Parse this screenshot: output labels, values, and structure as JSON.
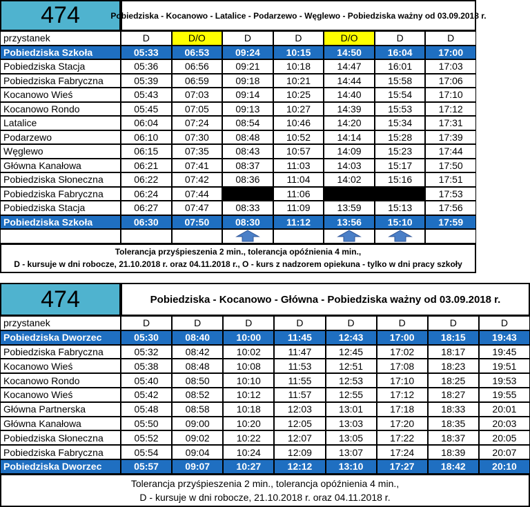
{
  "timetables": [
    {
      "route": "474",
      "title": "Pobiedziska - Kocanowo - Latalice - Podarzewo - Węglewo - Pobiedziska ważny od 03.09.2018 r.",
      "header": [
        "przystanek",
        "D",
        "D/O",
        "D",
        "D",
        "D/O",
        "D",
        "D"
      ],
      "rows": [
        [
          "Pobiedziska Szkoła",
          "05:33",
          "06:53",
          "09:24",
          "10:15",
          "14:50",
          "16:04",
          "17:00"
        ],
        [
          "Pobiedziska Stacja",
          "05:36",
          "06:56",
          "09:21",
          "10:18",
          "14:47",
          "16:01",
          "17:03"
        ],
        [
          "Pobiedziska Fabryczna",
          "05:39",
          "06:59",
          "09:18",
          "10:21",
          "14:44",
          "15:58",
          "17:06"
        ],
        [
          "Kocanowo Wieś",
          "05:43",
          "07:03",
          "09:14",
          "10:25",
          "14:40",
          "15:54",
          "17:10"
        ],
        [
          "Kocanowo Rondo",
          "05:45",
          "07:05",
          "09:13",
          "10:27",
          "14:39",
          "15:53",
          "17:12"
        ],
        [
          "Latalice",
          "06:04",
          "07:24",
          "08:54",
          "10:46",
          "14:20",
          "15:34",
          "17:31"
        ],
        [
          "Podarzewo",
          "06:10",
          "07:30",
          "08:48",
          "10:52",
          "14:14",
          "15:28",
          "17:39"
        ],
        [
          "Węglewo",
          "06:15",
          "07:35",
          "08:43",
          "10:57",
          "14:09",
          "15:23",
          "17:44"
        ],
        [
          "Główna Kanałowa",
          "06:21",
          "07:41",
          "08:37",
          "11:03",
          "14:03",
          "15:17",
          "17:50"
        ],
        [
          "Pobiedziska Słoneczna",
          "06:22",
          "07:42",
          "08:36",
          "11:04",
          "14:02",
          "15:16",
          "17:51"
        ],
        [
          "Pobiedziska Fabryczna",
          "06:24",
          "07:44",
          null,
          "11:06",
          null,
          null,
          "17:53"
        ],
        [
          "Pobiedziska Stacja",
          "06:27",
          "07:47",
          "08:33",
          "11:09",
          "13:59",
          "15:13",
          "17:56"
        ],
        [
          "Pobiedziska Szkoła",
          "06:30",
          "07:50",
          "08:30",
          "11:12",
          "13:56",
          "15:10",
          "17:59"
        ]
      ],
      "notes": [
        "Tolerancja przyśpieszenia 2 min., tolerancja opóźnienia 4 min.,",
        "D - kursuje w dni robocze, 21.10.2018 r. oraz 04.11.2018 r., O - kurs z nadzorem opiekuna - tylko w dni pracy szkoły"
      ]
    },
    {
      "route": "474",
      "title": "Pobiedziska - Kocanowo - Główna - Pobiedziska ważny od 03.09.2018 r.",
      "header": [
        "przystanek",
        "D",
        "D",
        "D",
        "D",
        "D",
        "D",
        "D",
        "D"
      ],
      "rows": [
        [
          "Pobiedziska Dworzec",
          "05:30",
          "08:40",
          "10:00",
          "11:45",
          "12:43",
          "17:00",
          "18:15",
          "19:43"
        ],
        [
          "Pobiedziska Fabryczna",
          "05:32",
          "08:42",
          "10:02",
          "11:47",
          "12:45",
          "17:02",
          "18:17",
          "19:45"
        ],
        [
          "Kocanowo Wieś",
          "05:38",
          "08:48",
          "10:08",
          "11:53",
          "12:51",
          "17:08",
          "18:23",
          "19:51"
        ],
        [
          "Kocanowo Rondo",
          "05:40",
          "08:50",
          "10:10",
          "11:55",
          "12:53",
          "17:10",
          "18:25",
          "19:53"
        ],
        [
          "Kocanowo Wieś",
          "05:42",
          "08:52",
          "10:12",
          "11:57",
          "12:55",
          "17:12",
          "18:27",
          "19:55"
        ],
        [
          "Główna Partnerska",
          "05:48",
          "08:58",
          "10:18",
          "12:03",
          "13:01",
          "17:18",
          "18:33",
          "20:01"
        ],
        [
          "Główna Kanałowa",
          "05:50",
          "09:00",
          "10:20",
          "12:05",
          "13:03",
          "17:20",
          "18:35",
          "20:03"
        ],
        [
          "Pobiedziska Słoneczna",
          "05:52",
          "09:02",
          "10:22",
          "12:07",
          "13:05",
          "17:22",
          "18:37",
          "20:05"
        ],
        [
          "Pobiedziska Fabryczna",
          "05:54",
          "09:04",
          "10:24",
          "12:09",
          "13:07",
          "17:24",
          "18:39",
          "20:07"
        ],
        [
          "Pobiedziska Dworzec",
          "05:57",
          "09:07",
          "10:27",
          "12:12",
          "13:10",
          "17:27",
          "18:42",
          "20:10"
        ]
      ],
      "notes": [
        "Tolerancja przyśpieszenia 2 min., tolerancja opóźnienia 4 min.,",
        "D - kursuje w dni robocze, 21.10.2018 r. oraz 04.11.2018 r."
      ]
    }
  ]
}
